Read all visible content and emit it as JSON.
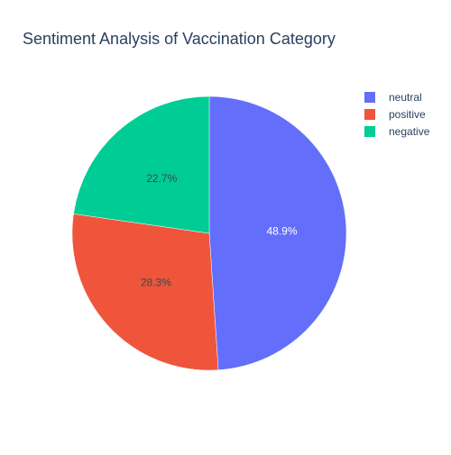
{
  "chart_data": {
    "type": "pie",
    "title": "Sentiment Analysis of Vaccination Category",
    "legend_position": "top-right",
    "slices": [
      {
        "label": "neutral",
        "percent": 48.9,
        "percent_label": "48.9%",
        "color": "#636efa",
        "text_color": "#ffffff"
      },
      {
        "label": "positive",
        "percent": 28.3,
        "percent_label": "28.3%",
        "color": "#ef553b",
        "text_color": "#444444"
      },
      {
        "label": "negative",
        "percent": 22.7,
        "percent_label": "22.7%",
        "color": "#00cc96",
        "text_color": "#444444"
      }
    ]
  }
}
